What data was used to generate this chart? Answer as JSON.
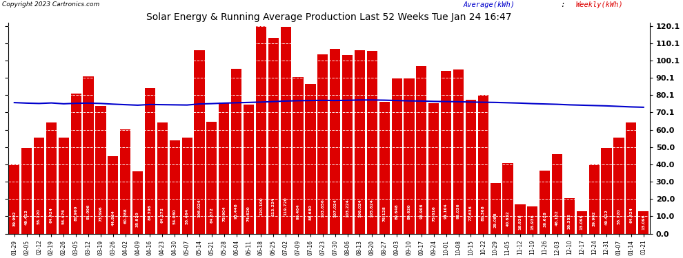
{
  "title": "Solar Energy & Running Average Production Last 52 Weeks Tue Jan 24 16:47",
  "copyright": "Copyright 2023 Cartronics.com",
  "legend_avg": "Average(kWh)",
  "legend_weekly": "Weekly(kWh)",
  "bar_color": "#dd0000",
  "avg_line_color": "#0000cc",
  "background_color": "#ffffff",
  "grid_color": "#aaaaaa",
  "ylim_max": 122.0,
  "yticks": [
    0.0,
    10.0,
    20.0,
    30.0,
    40.0,
    50.0,
    60.0,
    70.1,
    80.1,
    90.1,
    100.1,
    110.1,
    120.1
  ],
  "dates": [
    "01-29",
    "02-05",
    "02-12",
    "02-19",
    "02-26",
    "03-05",
    "03-12",
    "03-19",
    "03-26",
    "04-02",
    "04-09",
    "04-16",
    "04-23",
    "04-30",
    "05-07",
    "05-14",
    "05-21",
    "05-28",
    "06-04",
    "06-11",
    "06-18",
    "06-25",
    "07-02",
    "07-09",
    "07-16",
    "07-23",
    "07-30",
    "08-06",
    "08-13",
    "08-20",
    "08-27",
    "09-03",
    "09-10",
    "09-17",
    "09-24",
    "10-01",
    "10-08",
    "10-15",
    "10-22",
    "10-29",
    "11-05",
    "11-12",
    "11-19",
    "11-26",
    "12-03",
    "12-10",
    "12-17",
    "12-24",
    "12-31",
    "01-07",
    "01-14",
    "01-21"
  ],
  "weekly": [
    39.992,
    49.412,
    55.72,
    64.424,
    55.476,
    80.9,
    91.096,
    73.696,
    44.864,
    60.288,
    35.92,
    84.396,
    64.272,
    54.08,
    55.464,
    106.024,
    64.672,
    75.904,
    95.448,
    74.62,
    120.1,
    113.224,
    119.72,
    90.464,
    86.68,
    103.656,
    107.024,
    103.224,
    106.024,
    105.624,
    76.128,
    89.648,
    89.62,
    96.908,
    75.616,
    94.104,
    95.036,
    77.636,
    80.368,
    29.088,
    40.632,
    16.936,
    15.936,
    36.628,
    46.152,
    20.352,
    13.096,
    39.992,
    49.412,
    55.72,
    64.424,
    13.096
  ],
  "avg": [
    75.8,
    75.5,
    75.3,
    75.6,
    75.1,
    75.4,
    75.5,
    75.3,
    74.9,
    74.6,
    74.3,
    74.7,
    74.6,
    74.5,
    74.4,
    75.0,
    75.2,
    75.5,
    75.7,
    75.9,
    76.1,
    76.4,
    76.7,
    76.9,
    77.0,
    77.1,
    77.0,
    77.1,
    77.3,
    77.3,
    77.2,
    77.0,
    76.8,
    76.7,
    76.5,
    76.4,
    76.3,
    76.1,
    76.0,
    75.9,
    75.7,
    75.5,
    75.2,
    75.0,
    74.8,
    74.5,
    74.3,
    74.1,
    73.9,
    73.6,
    73.3,
    73.1
  ]
}
